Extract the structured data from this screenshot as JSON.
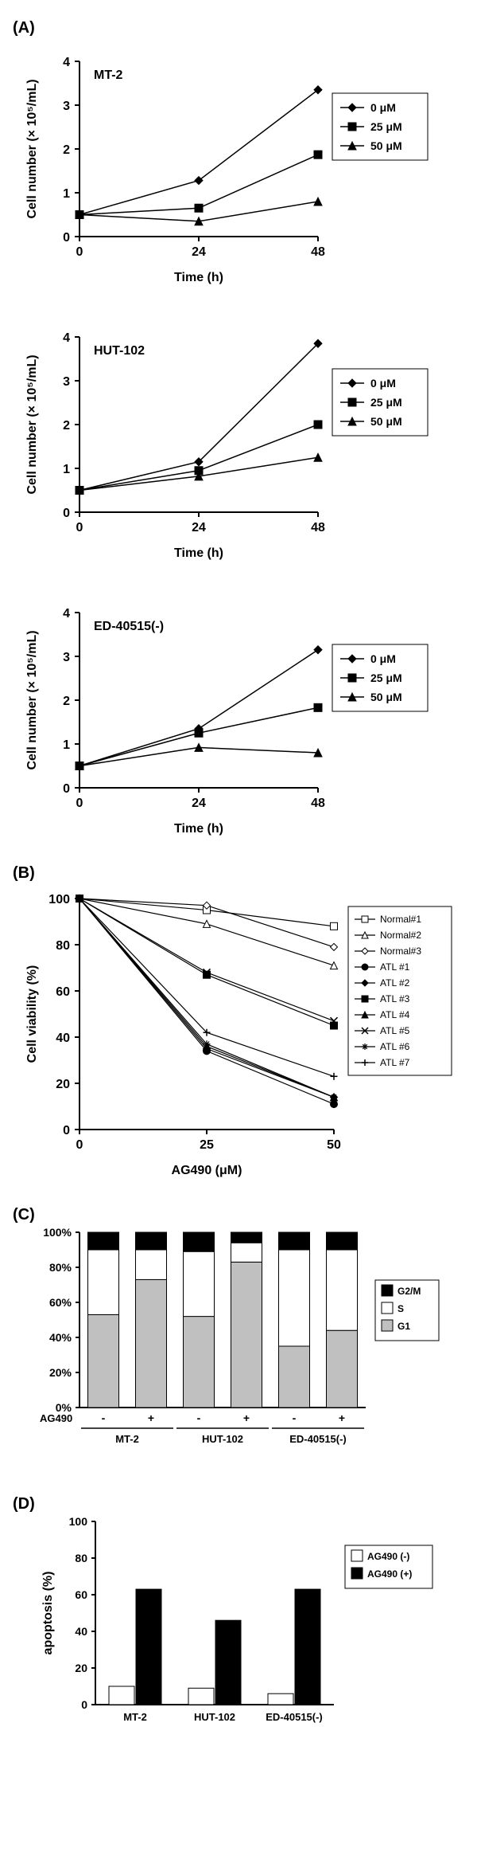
{
  "colors": {
    "bg": "#ffffff",
    "axis": "#000000",
    "line": "#000000",
    "text": "#000000",
    "black_fill": "#000000",
    "white_fill": "#ffffff",
    "gray_fill": "#c0c0c0"
  },
  "font_default_pt": 16,
  "panelA": {
    "label": "(A)",
    "xlabel": "Time (h)",
    "ylabel": "Cell number (× 10⁵/mL)",
    "xticks": [
      0,
      24,
      48
    ],
    "yticks": [
      0,
      1,
      2,
      3,
      4
    ],
    "xlim": [
      0,
      48
    ],
    "ylim": [
      0,
      4
    ],
    "legend_items": [
      {
        "marker": "diamond",
        "label": "0 μM"
      },
      {
        "marker": "square",
        "label": "25 μM"
      },
      {
        "marker": "triangle",
        "label": "50 μM"
      }
    ],
    "charts": [
      {
        "title": "MT-2",
        "series": {
          "0": {
            "x": [
              0,
              24,
              48
            ],
            "y": [
              0.5,
              1.28,
              3.35
            ],
            "marker": "diamond"
          },
          "25": {
            "x": [
              0,
              24,
              48
            ],
            "y": [
              0.5,
              0.65,
              1.87
            ],
            "marker": "square"
          },
          "50": {
            "x": [
              0,
              24,
              48
            ],
            "y": [
              0.5,
              0.35,
              0.8
            ],
            "marker": "triangle"
          }
        }
      },
      {
        "title": "HUT-102",
        "series": {
          "0": {
            "x": [
              0,
              24,
              48
            ],
            "y": [
              0.5,
              1.15,
              3.85
            ],
            "marker": "diamond"
          },
          "25": {
            "x": [
              0,
              24,
              48
            ],
            "y": [
              0.5,
              0.95,
              2.0
            ],
            "marker": "square"
          },
          "50": {
            "x": [
              0,
              24,
              48
            ],
            "y": [
              0.5,
              0.82,
              1.25
            ],
            "marker": "triangle"
          }
        }
      },
      {
        "title": "ED-40515(-)",
        "series": {
          "0": {
            "x": [
              0,
              24,
              48
            ],
            "y": [
              0.5,
              1.35,
              3.15
            ],
            "marker": "diamond"
          },
          "25": {
            "x": [
              0,
              24,
              48
            ],
            "y": [
              0.5,
              1.25,
              1.83
            ],
            "marker": "square"
          },
          "50": {
            "x": [
              0,
              24,
              48
            ],
            "y": [
              0.5,
              0.92,
              0.8
            ],
            "marker": "triangle"
          }
        }
      }
    ]
  },
  "panelB": {
    "label": "(B)",
    "type": "line",
    "xlabel": "AG490 (μM)",
    "ylabel": "Cell viability (%)",
    "xticks": [
      0,
      25,
      50
    ],
    "yticks": [
      0,
      20,
      40,
      60,
      80,
      100
    ],
    "xlim": [
      0,
      50
    ],
    "ylim": [
      0,
      100
    ],
    "series": [
      {
        "label": "Normal#1",
        "marker": "square",
        "fill": "white",
        "x": [
          0,
          25,
          50
        ],
        "y": [
          100,
          95,
          88
        ]
      },
      {
        "label": "Normal#2",
        "marker": "triangle",
        "fill": "white",
        "x": [
          0,
          25,
          50
        ],
        "y": [
          100,
          89,
          71
        ]
      },
      {
        "label": "Normal#3",
        "marker": "diamond",
        "fill": "white",
        "x": [
          0,
          25,
          50
        ],
        "y": [
          100,
          97,
          79
        ]
      },
      {
        "label": "ATL #1",
        "marker": "circle",
        "fill": "black",
        "x": [
          0,
          25,
          50
        ],
        "y": [
          100,
          34,
          11
        ]
      },
      {
        "label": "ATL #2",
        "marker": "diamond",
        "fill": "black",
        "x": [
          0,
          25,
          50
        ],
        "y": [
          100,
          35,
          14
        ]
      },
      {
        "label": "ATL #3",
        "marker": "square",
        "fill": "black",
        "x": [
          0,
          25,
          50
        ],
        "y": [
          100,
          67,
          45
        ]
      },
      {
        "label": "ATL #4",
        "marker": "triangle",
        "fill": "black",
        "x": [
          0,
          25,
          50
        ],
        "y": [
          100,
          36,
          14
        ]
      },
      {
        "label": "ATL #5",
        "marker": "x",
        "fill": "black",
        "x": [
          0,
          25,
          50
        ],
        "y": [
          100,
          68,
          47
        ]
      },
      {
        "label": "ATL #6",
        "marker": "asterisk",
        "fill": "black",
        "x": [
          0,
          25,
          50
        ],
        "y": [
          100,
          37,
          14
        ]
      },
      {
        "label": "ATL #7",
        "marker": "plus",
        "fill": "black",
        "x": [
          0,
          25,
          50
        ],
        "y": [
          100,
          42,
          23
        ]
      }
    ]
  },
  "panelC": {
    "label": "(C)",
    "type": "stacked_bar_percent",
    "ylabel_suffix": "%",
    "yticks": [
      0,
      20,
      40,
      60,
      80,
      100
    ],
    "ylim": [
      0,
      100
    ],
    "groups": [
      "MT-2",
      "HUT-102",
      "ED-40515(-)"
    ],
    "sub_labels": [
      "-",
      "+"
    ],
    "row_label": "AG490",
    "legend": [
      {
        "label": "G2/M",
        "color_key": "black_fill"
      },
      {
        "label": "S",
        "color_key": "white_fill"
      },
      {
        "label": "G1",
        "color_key": "gray_fill"
      }
    ],
    "data": [
      {
        "group": "MT-2",
        "sub": "-",
        "G1": 53,
        "S": 37,
        "G2M": 10
      },
      {
        "group": "MT-2",
        "sub": "+",
        "G1": 73,
        "S": 17,
        "G2M": 10
      },
      {
        "group": "HUT-102",
        "sub": "-",
        "G1": 52,
        "S": 37,
        "G2M": 11
      },
      {
        "group": "HUT-102",
        "sub": "+",
        "G1": 83,
        "S": 11,
        "G2M": 6
      },
      {
        "group": "ED-40515(-)",
        "sub": "-",
        "G1": 35,
        "S": 55,
        "G2M": 10
      },
      {
        "group": "ED-40515(-)",
        "sub": "+",
        "G1": 44,
        "S": 46,
        "G2M": 10
      }
    ],
    "bar_width": 0.7
  },
  "panelD": {
    "label": "(D)",
    "type": "grouped_bar",
    "ylabel": "apoptosis (%)",
    "yticks": [
      0,
      20,
      40,
      60,
      80,
      100
    ],
    "ylim": [
      0,
      100
    ],
    "groups": [
      "MT-2",
      "HUT-102",
      "ED-40515(-)"
    ],
    "legend": [
      {
        "label": "AG490 (-)",
        "color_key": "white_fill"
      },
      {
        "label": "AG490 (+)",
        "color_key": "black_fill"
      }
    ],
    "data": [
      {
        "group": "MT-2",
        "neg": 10,
        "pos": 63
      },
      {
        "group": "HUT-102",
        "neg": 9,
        "pos": 46
      },
      {
        "group": "ED-40515(-)",
        "neg": 6,
        "pos": 63
      }
    ],
    "bar_width": 0.7
  }
}
